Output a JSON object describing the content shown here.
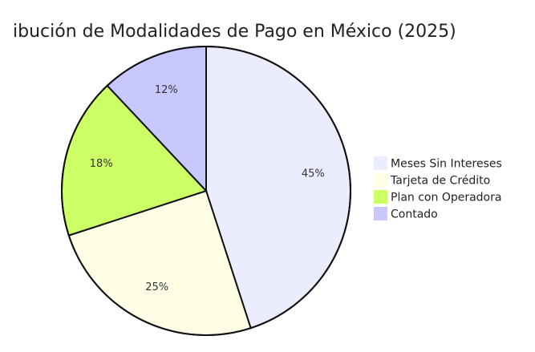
{
  "chart_data": {
    "type": "pie",
    "title": "ibución de Modalidades de Pago en México (2025)",
    "legend_position": "right",
    "slices": [
      {
        "label": "Meses Sin Intereses",
        "value": 45,
        "display": "45%",
        "color": "#ececff"
      },
      {
        "label": "Tarjeta de Crédito",
        "value": 25,
        "display": "25%",
        "color": "#ffffe6"
      },
      {
        "label": "Plan con Operadora",
        "value": 18,
        "display": "18%",
        "color": "#ccff66"
      },
      {
        "label": "Contado",
        "value": 12,
        "display": "12%",
        "color": "#c8c8ff"
      }
    ]
  }
}
